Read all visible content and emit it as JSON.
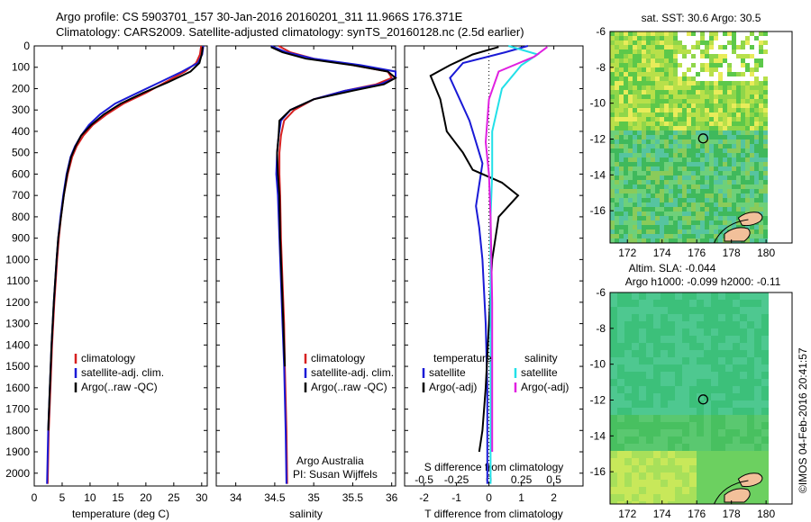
{
  "header": {
    "line1": "Argo profile: CS 5903701_157 30-Jan-2016 20160201_311 11.966S 176.371E",
    "line2": "Climatology: CARS2009. Satellite-adjusted climatology: synTS_20160128.nc (2.5d earlier)"
  },
  "colors": {
    "climatology": "#d62020",
    "satellite": "#1a1ad6",
    "argo": "#000000",
    "salinity_satellite": "#22e0e8",
    "salinity_argo": "#e020e0",
    "land": "#f2c09a"
  },
  "chart_data": [
    {
      "type": "line",
      "panel": "temperature",
      "xlabel": "temperature (deg C)",
      "ylabel": "",
      "xlim": [
        0,
        31
      ],
      "ylim": [
        2060,
        0
      ],
      "xticks": [
        0,
        5,
        10,
        15,
        20,
        25,
        30
      ],
      "yticks": [
        0,
        100,
        200,
        300,
        400,
        500,
        600,
        700,
        800,
        900,
        1000,
        1100,
        1200,
        1300,
        1400,
        1500,
        1600,
        1700,
        1800,
        1900,
        2000
      ],
      "legend": [
        "climatology",
        "satellite-adj. clim.",
        "Argo(..raw -QC)"
      ],
      "series": [
        {
          "name": "climatology",
          "x": [
            29.9,
            29.7,
            29.0,
            27.0,
            23.5,
            20.0,
            16.0,
            13.0,
            10.5,
            8.8,
            7.6,
            6.8,
            6.0,
            5.3,
            4.8,
            4.4,
            4.1,
            3.6,
            3.2,
            2.9,
            2.6,
            2.4
          ],
          "y": [
            0,
            40,
            80,
            120,
            170,
            220,
            270,
            320,
            370,
            420,
            470,
            520,
            600,
            700,
            800,
            900,
            1000,
            1200,
            1400,
            1600,
            1800,
            2050
          ]
        },
        {
          "name": "satellite-adj. clim.",
          "x": [
            30.3,
            30.1,
            29.3,
            26.5,
            22.5,
            18.5,
            14.5,
            11.8,
            9.8,
            8.4,
            7.3,
            6.5,
            5.8,
            5.2,
            4.7,
            4.3,
            4.0,
            3.5,
            3.1,
            2.8,
            2.5,
            2.3
          ],
          "y": [
            0,
            40,
            80,
            120,
            170,
            220,
            270,
            320,
            370,
            420,
            470,
            520,
            600,
            700,
            800,
            900,
            1000,
            1200,
            1400,
            1600,
            1800,
            2050
          ]
        },
        {
          "name": "Argo(..raw -QC)",
          "x": [
            30.2,
            30.0,
            29.6,
            28.0,
            24.0,
            19.5,
            15.5,
            12.5,
            10.2,
            8.4,
            7.4,
            6.6,
            5.9,
            5.3,
            4.8,
            4.3,
            4.0,
            3.5,
            3.1,
            2.8,
            2.5
          ],
          "y": [
            5,
            40,
            80,
            120,
            170,
            220,
            270,
            320,
            370,
            420,
            470,
            520,
            600,
            700,
            800,
            900,
            1000,
            1200,
            1400,
            1600,
            1800
          ]
        }
      ]
    },
    {
      "type": "line",
      "panel": "salinity",
      "xlabel": "salinity",
      "ylabel": "",
      "xlim": [
        33.75,
        36.05
      ],
      "ylim": [
        2060,
        0
      ],
      "xticks": [
        34,
        34.5,
        35,
        35.5,
        36
      ],
      "legend": [
        "climatology",
        "satellite-adj. clim.",
        "Argo(..raw -QC)"
      ],
      "annotation": [
        "Argo Australia",
        "PI: Susan Wijffels"
      ],
      "series": [
        {
          "name": "climatology",
          "x": [
            34.55,
            34.7,
            35.0,
            35.5,
            35.95,
            36.0,
            35.8,
            35.4,
            35.0,
            34.75,
            34.62,
            34.58,
            34.56,
            34.56,
            34.57,
            34.58,
            34.6,
            34.62,
            34.63,
            34.65,
            34.66
          ],
          "y": [
            0,
            30,
            60,
            90,
            120,
            150,
            180,
            210,
            250,
            300,
            350,
            420,
            500,
            600,
            700,
            900,
            1100,
            1300,
            1500,
            1800,
            2050
          ]
        },
        {
          "name": "satellite-adj. clim.",
          "x": [
            34.45,
            34.65,
            35.0,
            35.6,
            36.05,
            36.05,
            35.85,
            35.4,
            35.0,
            34.7,
            34.58,
            34.55,
            34.53,
            34.52,
            34.54,
            34.56,
            34.58,
            34.6,
            34.62,
            34.64,
            34.65
          ],
          "y": [
            0,
            30,
            60,
            90,
            120,
            150,
            180,
            210,
            250,
            300,
            350,
            420,
            500,
            600,
            700,
            900,
            1100,
            1300,
            1500,
            1800,
            2050
          ]
        },
        {
          "name": "Argo(..raw -QC)",
          "x": [
            34.45,
            34.6,
            34.9,
            35.5,
            35.95,
            36.05,
            35.9,
            35.5,
            35.0,
            34.7,
            34.56,
            34.55,
            34.53,
            34.54,
            34.56,
            34.57,
            34.59,
            34.61,
            34.63
          ],
          "y": [
            5,
            30,
            60,
            90,
            120,
            150,
            180,
            210,
            250,
            300,
            350,
            420,
            500,
            600,
            700,
            900,
            1100,
            1300,
            1500
          ]
        }
      ]
    },
    {
      "type": "line",
      "panel": "difference",
      "xlabel": "T difference from climatology",
      "xlabel_top": "S difference from climatology",
      "xlim": [
        -2.6,
        2.9
      ],
      "ylim": [
        2060,
        0
      ],
      "xticks_T": [
        -2,
        -1,
        0,
        1,
        2
      ],
      "xticks_S": [
        -0.5,
        -0.25,
        0,
        0.25,
        0.5
      ],
      "legend_temperature": [
        "temperature",
        "satellite",
        "Argo(-adj)"
      ],
      "legend_salinity": [
        "salinity",
        "satellite",
        "Argo(-adj)"
      ],
      "series": [
        {
          "name": "temperature satellite",
          "x": [
            1.2,
            0.5,
            -0.8,
            -1.2,
            -0.9,
            -0.6,
            -0.4,
            -0.2,
            -0.3,
            -0.4,
            -0.3,
            -0.2,
            -0.1,
            -0.05,
            -0.05,
            -0.05
          ],
          "y": [
            0,
            30,
            80,
            150,
            250,
            350,
            450,
            550,
            650,
            750,
            850,
            1000,
            1300,
            1600,
            1800,
            2050
          ]
        },
        {
          "name": "temperature Argo(-adj)",
          "x": [
            0.3,
            -0.5,
            -1.2,
            -1.8,
            -1.5,
            -1.3,
            -0.8,
            -0.5,
            0.4,
            0.9,
            0.3,
            0.1,
            0.0,
            -0.1,
            -0.2,
            -0.3
          ],
          "y": [
            5,
            40,
            90,
            140,
            250,
            400,
            500,
            580,
            640,
            700,
            800,
            1000,
            1300,
            1600,
            1800,
            1900
          ]
        },
        {
          "name": "salinity satellite",
          "x": [
            0.6,
            1.5,
            1.0,
            0.4,
            0.1,
            0.1,
            0.05,
            0.05,
            0.05,
            0.05
          ],
          "y": [
            0,
            40,
            90,
            200,
            400,
            600,
            800,
            1200,
            1600,
            2050
          ]
        },
        {
          "name": "salinity Argo(-adj)",
          "x": [
            1.8,
            1.4,
            0.3,
            0.0,
            -0.1,
            0.0,
            0.05,
            0.1,
            0.1,
            0.1
          ],
          "y": [
            5,
            50,
            120,
            250,
            450,
            600,
            800,
            1200,
            1600,
            1900
          ]
        }
      ]
    },
    {
      "type": "heatmap",
      "panel": "sst-map",
      "title": "sat. SST: 30.6  Argo: 30.5",
      "xlim": [
        171,
        181.5
      ],
      "ylim": [
        -17.8,
        -6
      ],
      "xticks": [
        172,
        174,
        176,
        178,
        180
      ],
      "yticks": [
        -6,
        -8,
        -10,
        -12,
        -14,
        -16
      ],
      "marker": {
        "lon": 176.371,
        "lat": -11.966
      }
    },
    {
      "type": "heatmap",
      "panel": "sla-map",
      "title_lines": [
        "Altim. SLA: -0.044",
        "Argo h1000: -0.099 h2000: -0.11"
      ],
      "xlim": [
        171,
        181.5
      ],
      "ylim": [
        -17.8,
        -6
      ],
      "xticks": [
        172,
        174,
        176,
        178,
        180
      ],
      "yticks": [
        -6,
        -8,
        -10,
        -12,
        -14,
        -16
      ],
      "marker": {
        "lon": 176.371,
        "lat": -11.966
      }
    }
  ],
  "footer": {
    "credit": "©IMOS 04-Feb-2016 20:41:57"
  }
}
